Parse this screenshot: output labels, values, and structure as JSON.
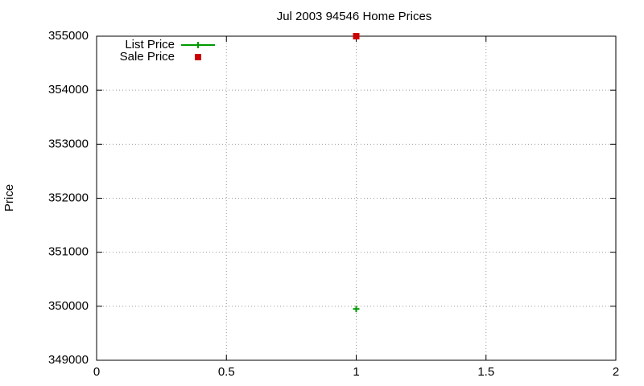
{
  "chart_data": {
    "type": "scatter",
    "title": "Jul 2003 94546 Home Prices",
    "y_label": "Price",
    "xlim": [
      0,
      2
    ],
    "xticks": [
      0,
      0.5,
      1,
      1.5,
      2
    ],
    "ylim": [
      349000,
      355000
    ],
    "yticks": [
      349000,
      350000,
      351000,
      352000,
      353000,
      354000,
      355000
    ],
    "grid": true,
    "legend": "top-left",
    "series": [
      {
        "name": "List Price",
        "color": "#009900",
        "marker": "plus",
        "x": [
          1
        ],
        "values": [
          349950
        ]
      },
      {
        "name": "Sale Price",
        "color": "#cc0000",
        "marker": "square",
        "x": [
          1
        ],
        "values": [
          355000
        ]
      }
    ]
  }
}
